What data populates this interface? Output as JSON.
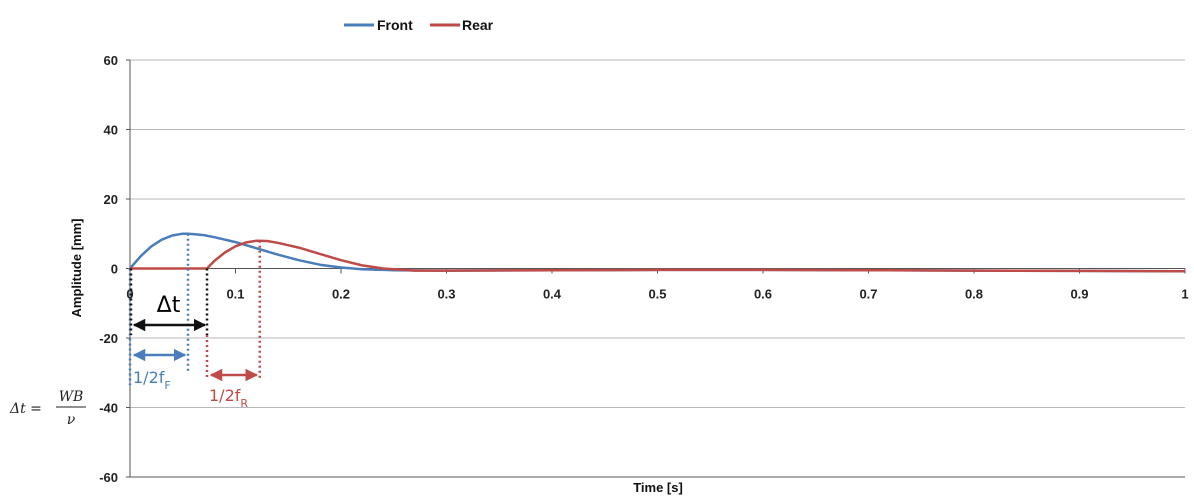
{
  "chart_data": {
    "type": "line",
    "title": "",
    "xlabel": "Time [s]",
    "ylabel": "Amplitude [mm]",
    "xlim": [
      0,
      1
    ],
    "ylim": [
      -60,
      60
    ],
    "x_ticks": [
      "0",
      "0.1",
      "0.2",
      "0.3",
      "0.4",
      "0.5",
      "0.6",
      "0.7",
      "0.8",
      "0.9",
      "1"
    ],
    "y_ticks": [
      "60",
      "40",
      "20",
      "0",
      "-20",
      "-40",
      "-60"
    ],
    "grid": "horizontal",
    "legend_position": "top-left",
    "series": [
      {
        "name": "Front",
        "color": "#4a7ebb",
        "x": [
          0,
          0.01,
          0.02,
          0.03,
          0.04,
          0.05,
          0.055,
          0.06,
          0.07,
          0.08,
          0.1,
          0.12,
          0.14,
          0.16,
          0.18,
          0.2,
          0.22,
          0.25,
          0.3,
          0.4,
          0.5,
          0.6,
          0.7,
          0.8,
          0.9,
          1.0
        ],
        "y": [
          0,
          3.5,
          6.3,
          8.3,
          9.5,
          10.0,
          10.0,
          9.9,
          9.6,
          9.0,
          7.6,
          5.8,
          4.0,
          2.4,
          1.1,
          0.3,
          -0.2,
          -0.5,
          -0.6,
          -0.5,
          -0.4,
          -0.4,
          -0.5,
          -0.6,
          -0.7,
          -0.8
        ]
      },
      {
        "name": "Rear",
        "color": "#be4b48",
        "x": [
          0,
          0.073,
          0.08,
          0.09,
          0.1,
          0.11,
          0.12,
          0.13,
          0.14,
          0.16,
          0.18,
          0.2,
          0.22,
          0.24,
          0.27,
          0.3,
          0.4,
          0.5,
          0.6,
          0.7,
          0.8,
          0.9,
          1.0
        ],
        "y": [
          0,
          0,
          2.2,
          4.6,
          6.4,
          7.5,
          8.0,
          7.9,
          7.4,
          6.0,
          4.2,
          2.4,
          0.9,
          0.0,
          -0.6,
          -0.6,
          -0.5,
          -0.4,
          -0.4,
          -0.5,
          -0.6,
          -0.7,
          -0.8
        ]
      }
    ],
    "annotations": {
      "delta_t": "Δt",
      "half_front": "1/2f",
      "half_front_sub": "F",
      "half_rear": "1/2f",
      "half_rear_sub": "R",
      "formula_lhs": "Δt =",
      "formula_num": "WB",
      "formula_den": "ν",
      "markers": {
        "front_peak_x": 0.055,
        "rear_start_x": 0.073,
        "rear_peak_x": 0.123
      }
    },
    "colors": {
      "front": "#4a7ebb",
      "rear": "#be4b48",
      "grid": "#b8b8b8",
      "axis": "#555555",
      "delta": "#111111"
    }
  }
}
